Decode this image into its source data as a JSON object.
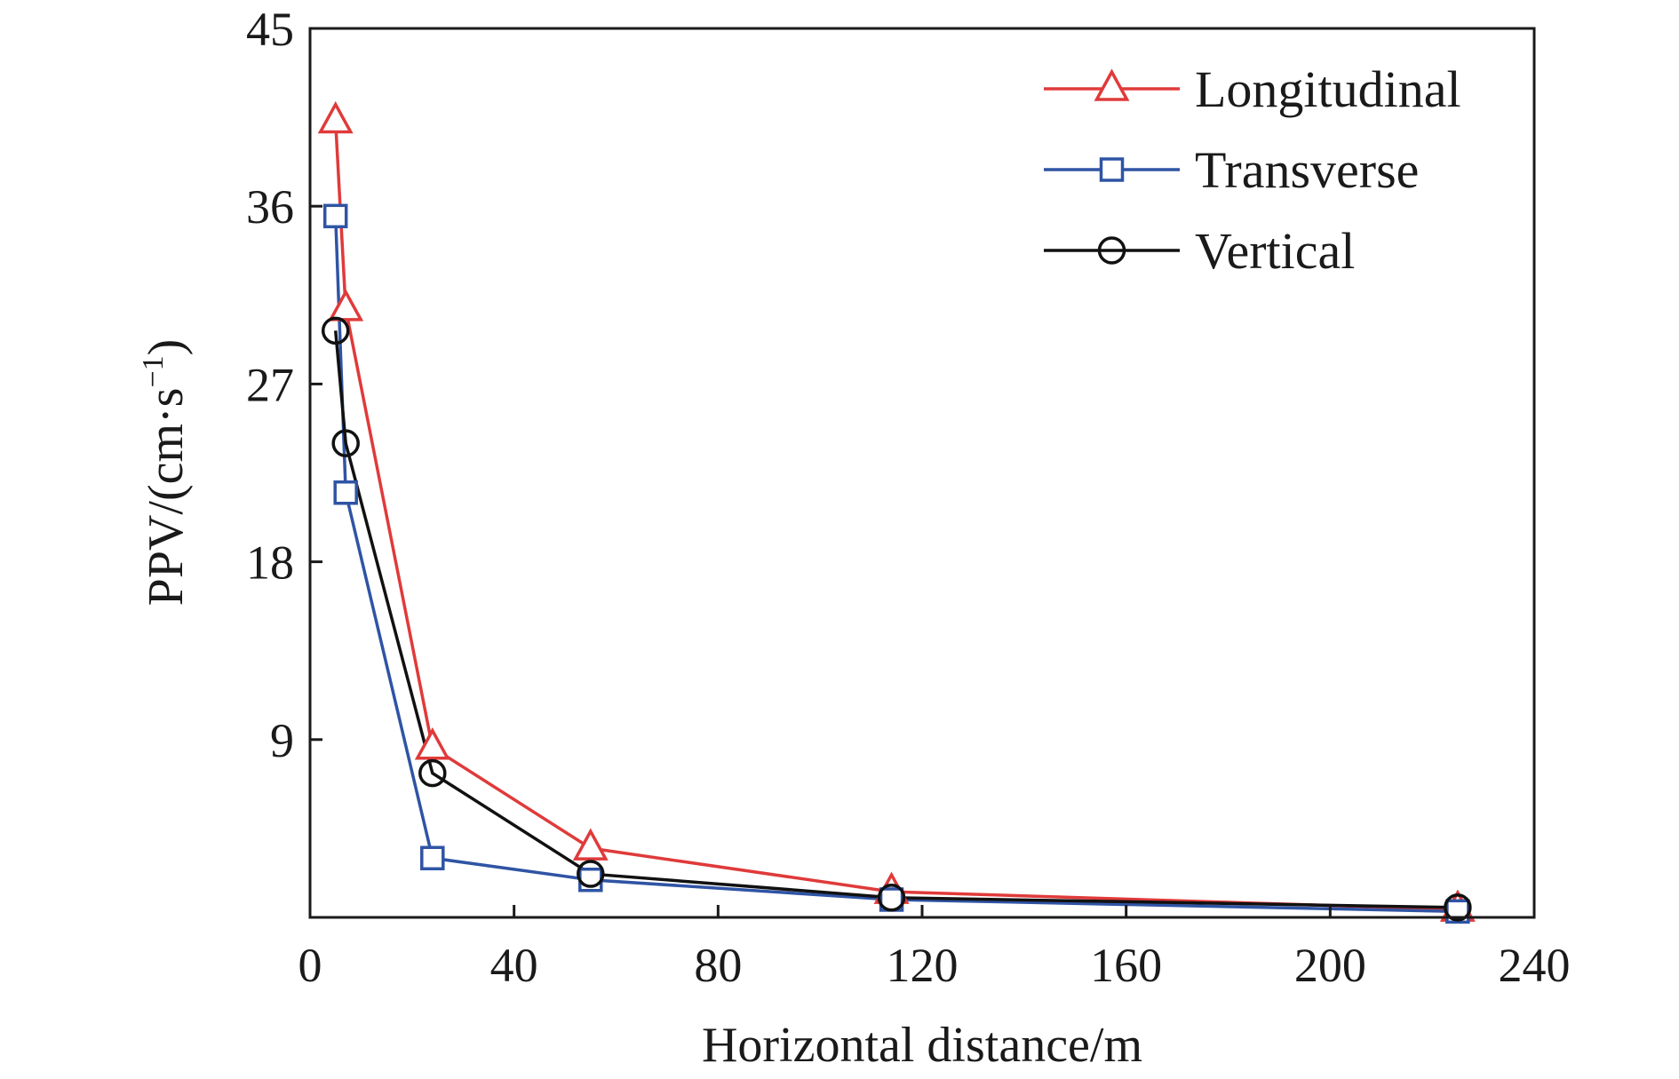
{
  "chart_data": {
    "type": "line",
    "title": "",
    "xlabel": "Horizontal distance/m",
    "ylabel": "PPV/(cm·s",
    "ylabel_exponent": "−1",
    "ylabel_close": ")",
    "xlim": [
      0,
      240
    ],
    "ylim": [
      0,
      45
    ],
    "xticks": [
      0,
      40,
      80,
      120,
      160,
      200,
      240
    ],
    "yticks": [
      9,
      18,
      27,
      36,
      45
    ],
    "grid": false,
    "legend_position": "top-right",
    "series": [
      {
        "name": "Longitudinal",
        "color": "#e03a3a",
        "marker": "triangle",
        "x": [
          5,
          7,
          24,
          55,
          114,
          225
        ],
        "y": [
          40.3,
          30.8,
          8.6,
          3.5,
          1.3,
          0.4
        ]
      },
      {
        "name": "Transverse",
        "color": "#2f54a4",
        "marker": "square",
        "x": [
          5,
          7,
          24,
          55,
          114,
          225
        ],
        "y": [
          35.5,
          21.5,
          3.0,
          1.9,
          0.9,
          0.3
        ]
      },
      {
        "name": "Vertical",
        "color": "#111111",
        "marker": "circle",
        "x": [
          5,
          7,
          24,
          55,
          114,
          225
        ],
        "y": [
          29.7,
          24.0,
          7.3,
          2.2,
          1.0,
          0.5
        ]
      }
    ]
  }
}
